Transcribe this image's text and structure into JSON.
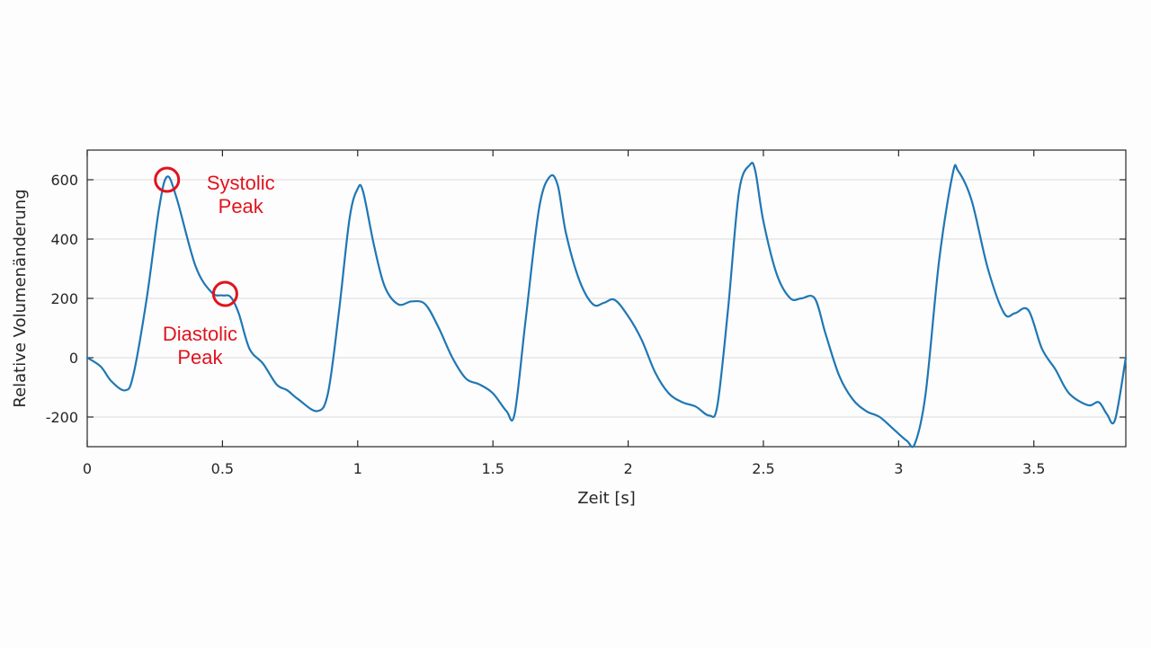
{
  "chart_data": {
    "type": "line",
    "xlabel": "Zeit [s]",
    "ylabel": "Relative Volumenänderung",
    "xlim": [
      0,
      3.84
    ],
    "ylim": [
      -300,
      700
    ],
    "xticks": [
      0,
      0.5,
      1,
      1.5,
      2,
      2.5,
      3,
      3.5
    ],
    "xtick_labels": [
      "0",
      "0.5",
      "1",
      "1.5",
      "2",
      "2.5",
      "3",
      "3.5"
    ],
    "yticks": [
      -200,
      0,
      200,
      400,
      600
    ],
    "ytick_labels": [
      "-200",
      "0",
      "200",
      "400",
      "600"
    ],
    "grid": "horizontal",
    "line_color": "#1f77b4",
    "annotation_color": "#e0141e",
    "series": [
      {
        "x": [
          0,
          0.05,
          0.09,
          0.14,
          0.17,
          0.22,
          0.265,
          0.295,
          0.33,
          0.4,
          0.46,
          0.5,
          0.53,
          0.56,
          0.6,
          0.65,
          0.7,
          0.74,
          0.78,
          0.85,
          0.89,
          0.93,
          0.97,
          1.0,
          1.02,
          1.06,
          1.1,
          1.15,
          1.2,
          1.25,
          1.3,
          1.35,
          1.4,
          1.45,
          1.5,
          1.55,
          1.58,
          1.62,
          1.67,
          1.71,
          1.74,
          1.77,
          1.82,
          1.87,
          1.91,
          1.95,
          2.0,
          2.05,
          2.1,
          2.15,
          2.2,
          2.25,
          2.3,
          2.33,
          2.37,
          2.41,
          2.45,
          2.47,
          2.5,
          2.55,
          2.6,
          2.64,
          2.69,
          2.73,
          2.78,
          2.83,
          2.88,
          2.93,
          2.98,
          3.03,
          3.06,
          3.1,
          3.15,
          3.2,
          3.22,
          3.27,
          3.33,
          3.39,
          3.43,
          3.48,
          3.53,
          3.58,
          3.63,
          3.7,
          3.74,
          3.77,
          3.8,
          3.84
        ],
        "y": [
          0,
          -30,
          -80,
          -110,
          -60,
          200,
          500,
          610,
          540,
          310,
          220,
          210,
          205,
          150,
          30,
          -20,
          -90,
          -110,
          -140,
          -180,
          -120,
          150,
          470,
          570,
          560,
          380,
          240,
          180,
          190,
          180,
          100,
          0,
          -70,
          -90,
          -120,
          -180,
          -190,
          120,
          500,
          610,
          580,
          420,
          260,
          180,
          185,
          195,
          140,
          60,
          -50,
          -120,
          -150,
          -165,
          -195,
          -160,
          170,
          560,
          650,
          630,
          460,
          280,
          200,
          200,
          200,
          80,
          -60,
          -140,
          -180,
          -200,
          -240,
          -280,
          -290,
          -120,
          330,
          620,
          630,
          530,
          300,
          150,
          150,
          160,
          30,
          -40,
          -120,
          -160,
          -150,
          -190,
          -210,
          0
        ]
      }
    ],
    "annotations": [
      {
        "text_lines": [
          "Systolic",
          "Peak"
        ],
        "x": 0.295,
        "y": 600
      },
      {
        "text_lines": [
          "Diastolic",
          "Peak"
        ],
        "x": 0.51,
        "y": 215
      }
    ]
  }
}
